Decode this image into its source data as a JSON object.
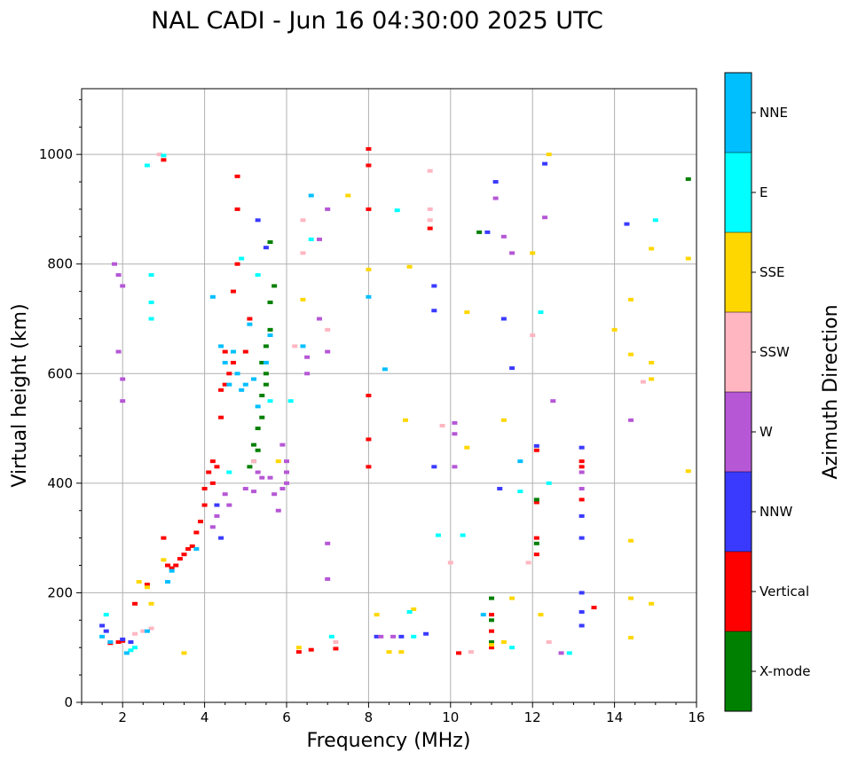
{
  "chart_data": {
    "type": "scatter",
    "title": "NAL CADI - Jun 16 04:30:00 2025 UTC",
    "xlabel": "Frequency (MHz)",
    "ylabel": "Virtual height (km)",
    "xlim": [
      1,
      16
    ],
    "ylim": [
      0,
      1120
    ],
    "xticks": [
      2,
      4,
      6,
      8,
      10,
      12,
      14,
      16
    ],
    "yticks": [
      0,
      200,
      400,
      600,
      800,
      1000
    ],
    "grid": true,
    "colorbar": {
      "label": "Azimuth Direction",
      "categories": [
        {
          "name": "X-mode",
          "color": "#008000"
        },
        {
          "name": "Vertical",
          "color": "#ff0000"
        },
        {
          "name": "NNW",
          "color": "#3a3aff"
        },
        {
          "name": "W",
          "color": "#b657d6"
        },
        {
          "name": "SSW",
          "color": "#ffb6c1"
        },
        {
          "name": "SSE",
          "color": "#ffd700"
        },
        {
          "name": "E",
          "color": "#00ffff"
        },
        {
          "name": "NNE",
          "color": "#00bfff"
        }
      ]
    },
    "series": [
      {
        "name": "Vertical",
        "points": [
          [
            1.7,
            108
          ],
          [
            1.9,
            110
          ],
          [
            2.0,
            112
          ],
          [
            2.3,
            180
          ],
          [
            2.6,
            215
          ],
          [
            3.0,
            990
          ],
          [
            3.0,
            300
          ],
          [
            3.1,
            250
          ],
          [
            3.2,
            245
          ],
          [
            3.3,
            250
          ],
          [
            3.4,
            262
          ],
          [
            3.5,
            270
          ],
          [
            3.6,
            280
          ],
          [
            3.7,
            285
          ],
          [
            3.8,
            310
          ],
          [
            3.9,
            330
          ],
          [
            4.0,
            360
          ],
          [
            4.0,
            390
          ],
          [
            4.1,
            420
          ],
          [
            4.2,
            400
          ],
          [
            4.2,
            440
          ],
          [
            4.3,
            430
          ],
          [
            4.4,
            520
          ],
          [
            4.4,
            570
          ],
          [
            4.5,
            580
          ],
          [
            4.5,
            640
          ],
          [
            4.6,
            600
          ],
          [
            4.7,
            620
          ],
          [
            4.7,
            750
          ],
          [
            4.8,
            800
          ],
          [
            4.8,
            960
          ],
          [
            4.8,
            900
          ],
          [
            5.0,
            640
          ],
          [
            5.1,
            700
          ],
          [
            6.3,
            92
          ],
          [
            6.6,
            96
          ],
          [
            7.2,
            98
          ],
          [
            8.0,
            1010
          ],
          [
            8.0,
            980
          ],
          [
            8.0,
            900
          ],
          [
            8.0,
            560
          ],
          [
            8.0,
            480
          ],
          [
            8.0,
            430
          ],
          [
            9.5,
            865
          ],
          [
            10.2,
            90
          ],
          [
            11.0,
            160
          ],
          [
            11.0,
            130
          ],
          [
            11.0,
            100
          ],
          [
            12.1,
            365
          ],
          [
            12.1,
            300
          ],
          [
            12.1,
            270
          ],
          [
            12.1,
            460
          ],
          [
            13.2,
            440
          ],
          [
            13.2,
            430
          ],
          [
            13.2,
            370
          ],
          [
            13.5,
            173
          ]
        ]
      },
      {
        "name": "X-mode",
        "points": [
          [
            5.2,
            440
          ],
          [
            5.3,
            460
          ],
          [
            5.3,
            500
          ],
          [
            5.4,
            520
          ],
          [
            5.4,
            560
          ],
          [
            5.5,
            580
          ],
          [
            5.5,
            600
          ],
          [
            5.5,
            650
          ],
          [
            5.6,
            680
          ],
          [
            5.6,
            730
          ],
          [
            5.7,
            760
          ],
          [
            5.1,
            430
          ],
          [
            5.2,
            470
          ],
          [
            5.4,
            620
          ],
          [
            5.6,
            840
          ],
          [
            10.7,
            858
          ],
          [
            11.0,
            190
          ],
          [
            11.0,
            150
          ],
          [
            11.0,
            110
          ],
          [
            12.1,
            370
          ],
          [
            12.1,
            290
          ],
          [
            15.8,
            955
          ]
        ]
      },
      {
        "name": "NNW",
        "points": [
          [
            1.5,
            140
          ],
          [
            1.6,
            130
          ],
          [
            2.0,
            115
          ],
          [
            2.2,
            110
          ],
          [
            4.3,
            360
          ],
          [
            4.4,
            300
          ],
          [
            5.3,
            880
          ],
          [
            5.5,
            830
          ],
          [
            8.2,
            120
          ],
          [
            8.8,
            120
          ],
          [
            9.4,
            125
          ],
          [
            9.6,
            715
          ],
          [
            9.6,
            760
          ],
          [
            9.6,
            430
          ],
          [
            10.9,
            858
          ],
          [
            11.1,
            950
          ],
          [
            11.2,
            390
          ],
          [
            11.3,
            700
          ],
          [
            11.5,
            610
          ],
          [
            12.1,
            468
          ],
          [
            12.3,
            983
          ],
          [
            13.2,
            465
          ],
          [
            13.2,
            340
          ],
          [
            13.2,
            300
          ],
          [
            13.2,
            200
          ],
          [
            13.2,
            165
          ],
          [
            13.2,
            140
          ],
          [
            14.3,
            873
          ]
        ]
      },
      {
        "name": "W",
        "points": [
          [
            1.8,
            800
          ],
          [
            1.9,
            780
          ],
          [
            2.0,
            760
          ],
          [
            1.9,
            640
          ],
          [
            2.0,
            590
          ],
          [
            2.0,
            550
          ],
          [
            4.2,
            320
          ],
          [
            4.3,
            340
          ],
          [
            4.5,
            380
          ],
          [
            4.6,
            360
          ],
          [
            5.0,
            390
          ],
          [
            5.2,
            385
          ],
          [
            5.3,
            420
          ],
          [
            5.4,
            410
          ],
          [
            5.6,
            410
          ],
          [
            5.7,
            380
          ],
          [
            5.8,
            350
          ],
          [
            5.9,
            390
          ],
          [
            6.0,
            420
          ],
          [
            6.0,
            440
          ],
          [
            6.0,
            400
          ],
          [
            5.9,
            470
          ],
          [
            6.5,
            630
          ],
          [
            6.5,
            600
          ],
          [
            6.8,
            845
          ],
          [
            6.8,
            700
          ],
          [
            7.0,
            900
          ],
          [
            7.0,
            640
          ],
          [
            7.0,
            290
          ],
          [
            7.0,
            225
          ],
          [
            8.3,
            120
          ],
          [
            8.6,
            120
          ],
          [
            10.1,
            510
          ],
          [
            10.1,
            490
          ],
          [
            10.1,
            430
          ],
          [
            11.1,
            920
          ],
          [
            11.3,
            850
          ],
          [
            11.5,
            820
          ],
          [
            12.3,
            885
          ],
          [
            12.5,
            550
          ],
          [
            12.7,
            90
          ],
          [
            13.2,
            390
          ],
          [
            13.2,
            420
          ],
          [
            14.4,
            515
          ]
        ]
      },
      {
        "name": "SSW",
        "points": [
          [
            2.3,
            125
          ],
          [
            2.5,
            130
          ],
          [
            2.7,
            135
          ],
          [
            2.9,
            1000
          ],
          [
            5.2,
            440
          ],
          [
            6.2,
            650
          ],
          [
            6.4,
            880
          ],
          [
            6.4,
            820
          ],
          [
            7.0,
            680
          ],
          [
            7.2,
            110
          ],
          [
            9.5,
            970
          ],
          [
            9.5,
            900
          ],
          [
            9.5,
            880
          ],
          [
            9.8,
            505
          ],
          [
            10.0,
            255
          ],
          [
            10.5,
            92
          ],
          [
            11.9,
            255
          ],
          [
            12.0,
            670
          ],
          [
            12.4,
            110
          ],
          [
            14.7,
            585
          ]
        ]
      },
      {
        "name": "SSE",
        "points": [
          [
            2.4,
            220
          ],
          [
            2.6,
            210
          ],
          [
            2.7,
            180
          ],
          [
            3.0,
            260
          ],
          [
            3.5,
            90
          ],
          [
            5.8,
            440
          ],
          [
            6.3,
            100
          ],
          [
            6.4,
            735
          ],
          [
            7.5,
            925
          ],
          [
            8.0,
            790
          ],
          [
            8.2,
            160
          ],
          [
            8.5,
            92
          ],
          [
            8.8,
            92
          ],
          [
            8.9,
            515
          ],
          [
            9.1,
            170
          ],
          [
            9.0,
            795
          ],
          [
            10.4,
            712
          ],
          [
            10.4,
            465
          ],
          [
            11.0,
            105
          ],
          [
            11.3,
            110
          ],
          [
            11.3,
            515
          ],
          [
            11.5,
            190
          ],
          [
            12.0,
            820
          ],
          [
            12.2,
            160
          ],
          [
            12.4,
            1000
          ],
          [
            14.0,
            680
          ],
          [
            14.4,
            735
          ],
          [
            14.4,
            635
          ],
          [
            14.4,
            295
          ],
          [
            14.4,
            190
          ],
          [
            14.4,
            118
          ],
          [
            14.9,
            828
          ],
          [
            14.9,
            620
          ],
          [
            14.9,
            590
          ],
          [
            14.9,
            180
          ],
          [
            15.8,
            810
          ],
          [
            15.8,
            422
          ]
        ]
      },
      {
        "name": "E",
        "points": [
          [
            1.6,
            160
          ],
          [
            2.2,
            95
          ],
          [
            2.3,
            100
          ],
          [
            2.6,
            980
          ],
          [
            2.7,
            780
          ],
          [
            2.7,
            730
          ],
          [
            2.7,
            700
          ],
          [
            3.0,
            998
          ],
          [
            4.6,
            420
          ],
          [
            4.9,
            810
          ],
          [
            5.3,
            780
          ],
          [
            5.6,
            550
          ],
          [
            6.1,
            550
          ],
          [
            6.6,
            845
          ],
          [
            7.1,
            120
          ],
          [
            8.7,
            898
          ],
          [
            9.0,
            165
          ],
          [
            9.1,
            120
          ],
          [
            9.7,
            305
          ],
          [
            10.3,
            305
          ],
          [
            11.5,
            100
          ],
          [
            11.7,
            385
          ],
          [
            12.4,
            400
          ],
          [
            12.9,
            90
          ],
          [
            12.2,
            712
          ],
          [
            15.0,
            880
          ]
        ]
      },
      {
        "name": "NNE",
        "points": [
          [
            1.5,
            120
          ],
          [
            1.7,
            110
          ],
          [
            2.1,
            90
          ],
          [
            2.6,
            130
          ],
          [
            3.1,
            220
          ],
          [
            3.2,
            240
          ],
          [
            3.8,
            280
          ],
          [
            4.2,
            740
          ],
          [
            4.4,
            650
          ],
          [
            4.5,
            620
          ],
          [
            4.6,
            580
          ],
          [
            4.7,
            640
          ],
          [
            4.8,
            600
          ],
          [
            4.9,
            570
          ],
          [
            5.0,
            580
          ],
          [
            5.1,
            690
          ],
          [
            5.2,
            590
          ],
          [
            5.3,
            540
          ],
          [
            5.5,
            620
          ],
          [
            5.6,
            670
          ],
          [
            6.4,
            650
          ],
          [
            6.6,
            925
          ],
          [
            8.0,
            740
          ],
          [
            8.4,
            608
          ],
          [
            10.8,
            160
          ],
          [
            11.7,
            440
          ]
        ]
      }
    ]
  }
}
